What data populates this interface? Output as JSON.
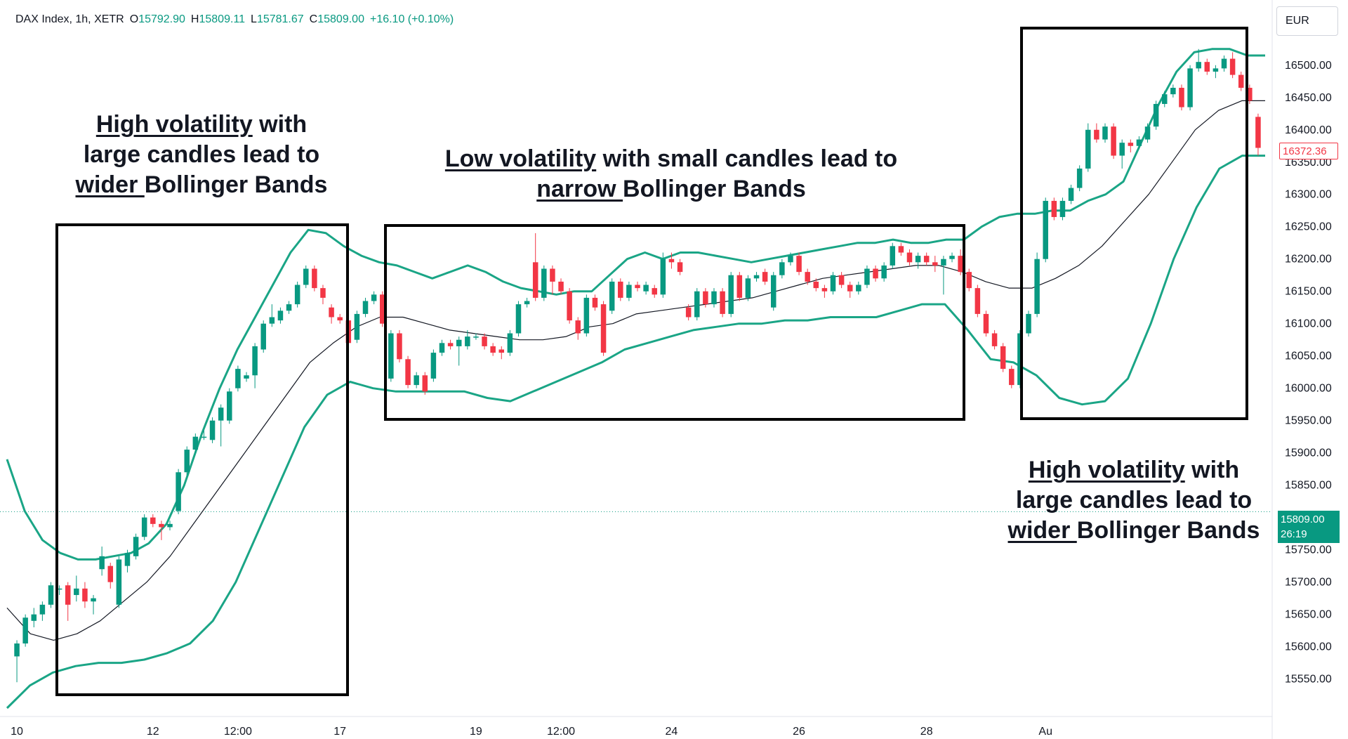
{
  "legend": {
    "symbol": "DAX Index, 1h, XETR",
    "o_label": "O",
    "o_value": "15792.90",
    "h_label": "H",
    "h_value": "15809.11",
    "l_label": "L",
    "l_value": "15781.67",
    "c_label": "C",
    "c_value": "15809.00",
    "change": "+16.10 (+0.10%)"
  },
  "currency": "EUR",
  "annotations": {
    "left": {
      "underline1": "High volatility",
      "rest1": " with",
      "line2": "large candles lead to",
      "underline3": "wider ",
      "rest3": "Bollinger Bands"
    },
    "middle": {
      "underline1": "Low volatility",
      "rest1": " with small candles lead to",
      "underline2": "narrow ",
      "rest2": "Bollinger Bands"
    },
    "right": {
      "underline1": "High volatility",
      "rest1": " with",
      "line2": "large candles lead to",
      "underline3": "wider ",
      "rest3": "Bollinger Bands"
    }
  },
  "price_tags": {
    "last_price": "16372.36",
    "current_price": "15809.00",
    "countdown": "26:19"
  },
  "colors": {
    "up": "#089981",
    "down": "#f23645",
    "bands": "#1aa586",
    "basis": "#131722",
    "axis_text": "#131722"
  },
  "chart_data": {
    "type": "candlestick",
    "series_note": "",
    "ylim": [
      15505,
      16590
    ],
    "y_ticks": [
      15550,
      15600,
      15650,
      15700,
      15750,
      15800,
      15850,
      15900,
      15950,
      16000,
      16050,
      16100,
      16150,
      16200,
      16250,
      16300,
      16350,
      16400,
      16450,
      16500
    ],
    "x_ticks": [
      {
        "label": "10",
        "bar": 0
      },
      {
        "label": "12",
        "bar": 16
      },
      {
        "label": "12:00",
        "bar": 26
      },
      {
        "label": "17",
        "bar": 38
      },
      {
        "label": "19",
        "bar": 54
      },
      {
        "label": "12:00",
        "bar": 64
      },
      {
        "label": "24",
        "bar": 77
      },
      {
        "label": "26",
        "bar": 92
      },
      {
        "label": "28",
        "bar": 107
      },
      {
        "label": "Au",
        "bar": 121
      }
    ],
    "candles": [
      [
        15585,
        15605,
        15545,
        15610
      ],
      [
        15605,
        15645,
        15600,
        15650
      ],
      [
        15640,
        15650,
        15630,
        15660
      ],
      [
        15650,
        15665,
        15640,
        15670
      ],
      [
        15665,
        15695,
        15660,
        15700
      ],
      [
        15690,
        15690,
        15680,
        15695
      ],
      [
        15695,
        15665,
        15640,
        15700
      ],
      [
        15680,
        15690,
        15670,
        15710
      ],
      [
        15690,
        15670,
        15660,
        15700
      ],
      [
        15670,
        15675,
        15650,
        15680
      ],
      [
        15720,
        15740,
        15710,
        15755
      ],
      [
        15725,
        15700,
        15690,
        15730
      ],
      [
        15665,
        15735,
        15660,
        15740
      ],
      [
        15725,
        15745,
        15715,
        15750
      ],
      [
        15740,
        15770,
        15735,
        15775
      ],
      [
        15770,
        15800,
        15765,
        15805
      ],
      [
        15800,
        15790,
        15785,
        15805
      ],
      [
        15790,
        15785,
        15765,
        15795
      ],
      [
        15785,
        15790,
        15780,
        15795
      ],
      [
        15810,
        15870,
        15805,
        15875
      ],
      [
        15870,
        15905,
        15865,
        15910
      ],
      [
        15905,
        15925,
        15900,
        15930
      ],
      [
        15925,
        15925,
        15920,
        15935
      ],
      [
        15920,
        15950,
        15915,
        15955
      ],
      [
        15950,
        15970,
        15910,
        15975
      ],
      [
        15950,
        15995,
        15945,
        16000
      ],
      [
        16000,
        16030,
        15995,
        16035
      ],
      [
        16015,
        16020,
        16010,
        16025
      ],
      [
        16020,
        16065,
        16000,
        16070
      ],
      [
        16060,
        16100,
        16055,
        16105
      ],
      [
        16100,
        16110,
        16095,
        16130
      ],
      [
        16105,
        16120,
        16100,
        16125
      ],
      [
        16120,
        16130,
        16115,
        16135
      ],
      [
        16130,
        16160,
        16125,
        16165
      ],
      [
        16160,
        16185,
        16155,
        16190
      ],
      [
        16185,
        16155,
        16150,
        16190
      ],
      [
        16155,
        16140,
        16130,
        16160
      ],
      [
        16125,
        16110,
        16100,
        16130
      ],
      [
        16110,
        16105,
        16100,
        16115
      ],
      [
        16105,
        16070,
        16065,
        16110
      ],
      [
        16075,
        16115,
        16070,
        16120
      ],
      [
        16115,
        16135,
        16110,
        16140
      ],
      [
        16135,
        16145,
        16130,
        16150
      ],
      [
        16145,
        16100,
        16095,
        16150
      ],
      [
        16015,
        16085,
        16010,
        16090
      ],
      [
        16085,
        16045,
        16040,
        16090
      ],
      [
        16045,
        16005,
        16000,
        16050
      ],
      [
        16005,
        16020,
        16000,
        16025
      ],
      [
        16020,
        15995,
        15990,
        16025
      ],
      [
        16015,
        16055,
        16010,
        16060
      ],
      [
        16055,
        16070,
        16050,
        16075
      ],
      [
        16070,
        16065,
        16060,
        16075
      ],
      [
        16065,
        16075,
        16035,
        16080
      ],
      [
        16065,
        16080,
        16060,
        16090
      ],
      [
        16080,
        16080,
        16075,
        16085
      ],
      [
        16080,
        16065,
        16060,
        16085
      ],
      [
        16065,
        16055,
        16050,
        16070
      ],
      [
        16060,
        16055,
        16045,
        16065
      ],
      [
        16055,
        16085,
        16050,
        16090
      ],
      [
        16085,
        16130,
        16080,
        16135
      ],
      [
        16130,
        16135,
        16125,
        16140
      ],
      [
        16195,
        16140,
        16135,
        16240
      ],
      [
        16140,
        16185,
        16135,
        16190
      ],
      [
        16185,
        16165,
        16145,
        16190
      ],
      [
        16165,
        16150,
        16145,
        16170
      ],
      [
        16150,
        16105,
        16100,
        16155
      ],
      [
        16105,
        16085,
        16075,
        16110
      ],
      [
        16085,
        16140,
        16080,
        16145
      ],
      [
        16140,
        16125,
        16120,
        16145
      ],
      [
        16130,
        16055,
        16050,
        16135
      ],
      [
        16120,
        16165,
        16115,
        16170
      ],
      [
        16165,
        16140,
        16135,
        16170
      ],
      [
        16140,
        16160,
        16135,
        16165
      ],
      [
        16160,
        16155,
        16150,
        16165
      ],
      [
        16150,
        16160,
        16145,
        16165
      ],
      [
        16155,
        16145,
        16140,
        16160
      ],
      [
        16145,
        16200,
        16140,
        16210
      ],
      [
        16200,
        16195,
        16185,
        16210
      ],
      [
        16195,
        16180,
        16175,
        16200
      ],
      [
        16125,
        16110,
        16105,
        16130
      ],
      [
        16110,
        16150,
        16105,
        16155
      ],
      [
        16150,
        16130,
        16125,
        16155
      ],
      [
        16130,
        16150,
        16125,
        16155
      ],
      [
        16150,
        16115,
        16110,
        16155
      ],
      [
        16115,
        16175,
        16110,
        16180
      ],
      [
        16175,
        16140,
        16135,
        16180
      ],
      [
        16140,
        16170,
        16135,
        16175
      ],
      [
        16170,
        16175,
        16165,
        16180
      ],
      [
        16180,
        16165,
        16160,
        16185
      ],
      [
        16125,
        16175,
        16120,
        16180
      ],
      [
        16175,
        16195,
        16170,
        16200
      ],
      [
        16195,
        16205,
        16190,
        16210
      ],
      [
        16205,
        16180,
        16175,
        16210
      ],
      [
        16180,
        16165,
        16160,
        16185
      ],
      [
        16165,
        16155,
        16150,
        16170
      ],
      [
        16155,
        16150,
        16140,
        16160
      ],
      [
        16150,
        16175,
        16145,
        16180
      ],
      [
        16175,
        16160,
        16155,
        16180
      ],
      [
        16160,
        16150,
        16140,
        16165
      ],
      [
        16150,
        16160,
        16145,
        16165
      ],
      [
        16160,
        16185,
        16155,
        16190
      ],
      [
        16185,
        16170,
        16165,
        16190
      ],
      [
        16170,
        16190,
        16165,
        16195
      ],
      [
        16190,
        16220,
        16185,
        16225
      ],
      [
        16220,
        16210,
        16205,
        16225
      ],
      [
        16210,
        16195,
        16190,
        16215
      ],
      [
        16195,
        16205,
        16185,
        16210
      ],
      [
        16205,
        16195,
        16190,
        16210
      ],
      [
        16195,
        16190,
        16180,
        16205
      ],
      [
        16190,
        16200,
        16145,
        16205
      ],
      [
        16200,
        16205,
        16195,
        16210
      ],
      [
        16205,
        16180,
        16175,
        16215
      ],
      [
        16180,
        16155,
        16150,
        16185
      ],
      [
        16155,
        16115,
        16110,
        16160
      ],
      [
        16115,
        16085,
        16080,
        16120
      ],
      [
        16085,
        16065,
        16060,
        16090
      ],
      [
        16065,
        16030,
        16025,
        16070
      ],
      [
        16030,
        16005,
        16000,
        16035
      ],
      [
        16005,
        16085,
        16000,
        16090
      ],
      [
        16085,
        16115,
        16080,
        16120
      ],
      [
        16115,
        16200,
        16110,
        16210
      ],
      [
        16200,
        16290,
        16195,
        16295
      ],
      [
        16290,
        16265,
        16260,
        16295
      ],
      [
        16265,
        16290,
        16260,
        16295
      ],
      [
        16290,
        16310,
        16285,
        16315
      ],
      [
        16310,
        16340,
        16305,
        16345
      ],
      [
        16340,
        16400,
        16335,
        16410
      ],
      [
        16400,
        16385,
        16380,
        16410
      ],
      [
        16385,
        16405,
        16380,
        16410
      ],
      [
        16405,
        16360,
        16355,
        16410
      ],
      [
        16360,
        16380,
        16340,
        16385
      ],
      [
        16380,
        16375,
        16365,
        16385
      ],
      [
        16375,
        16385,
        16370,
        16390
      ],
      [
        16385,
        16405,
        16380,
        16410
      ],
      [
        16405,
        16440,
        16400,
        16445
      ],
      [
        16440,
        16455,
        16435,
        16460
      ],
      [
        16455,
        16465,
        16450,
        16470
      ],
      [
        16465,
        16435,
        16430,
        16470
      ],
      [
        16435,
        16495,
        16430,
        16500
      ],
      [
        16495,
        16505,
        16490,
        16525
      ],
      [
        16505,
        16490,
        16485,
        16510
      ],
      [
        16490,
        16495,
        16480,
        16500
      ],
      [
        16495,
        16510,
        16490,
        16515
      ],
      [
        16510,
        16485,
        16480,
        16520
      ],
      [
        16485,
        16465,
        16460,
        16490
      ],
      [
        16465,
        16445,
        16440,
        16470
      ],
      [
        16420,
        16372,
        16360,
        16425
      ]
    ],
    "upper_band": [
      15890,
      15810,
      15765,
      15745,
      15735,
      15735,
      15740,
      15745,
      15760,
      15790,
      15850,
      15930,
      16000,
      16060,
      16110,
      16160,
      16210,
      16245,
      16240,
      16220,
      16205,
      16195,
      16190,
      16180,
      16170,
      16180,
      16190,
      16180,
      16165,
      16155,
      16150,
      16145,
      16150,
      16150,
      16175,
      16200,
      16210,
      16200,
      16210,
      16210,
      16205,
      16200,
      16195,
      16200,
      16205,
      16210,
      16215,
      16220,
      16225,
      16225,
      16230,
      16225,
      16225,
      16230,
      16230,
      16250,
      16265,
      16270,
      16270,
      16275,
      16275,
      16290,
      16300,
      16320,
      16380,
      16440,
      16490,
      16520,
      16525,
      16525,
      16515,
      16515
    ],
    "lower_band": [
      15505,
      15540,
      15560,
      15570,
      15575,
      15575,
      15580,
      15590,
      15605,
      15640,
      15700,
      15780,
      15860,
      15940,
      15990,
      16010,
      16000,
      15995,
      15995,
      15995,
      15995,
      15985,
      15980,
      15995,
      16010,
      16025,
      16040,
      16060,
      16070,
      16080,
      16090,
      16095,
      16100,
      16100,
      16105,
      16105,
      16110,
      16110,
      16110,
      16120,
      16130,
      16130,
      16090,
      16045,
      16040,
      16020,
      15985,
      15975,
      15980,
      16015,
      16100,
      16200,
      16280,
      16340,
      16360,
      16360
    ],
    "basis": [
      15660,
      15620,
      15610,
      15620,
      15640,
      15670,
      15700,
      15740,
      15790,
      15840,
      15890,
      15940,
      15990,
      16040,
      16070,
      16095,
      16110,
      16110,
      16100,
      16090,
      16085,
      16080,
      16075,
      16075,
      16080,
      16095,
      16100,
      16115,
      16120,
      16125,
      16130,
      16135,
      16140,
      16150,
      16160,
      16170,
      16175,
      16180,
      16185,
      16190,
      16190,
      16180,
      16165,
      16155,
      16155,
      16170,
      16190,
      16220,
      16260,
      16300,
      16350,
      16400,
      16430,
      16445,
      16445
    ]
  }
}
